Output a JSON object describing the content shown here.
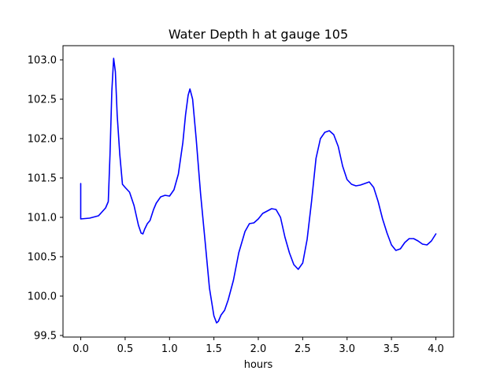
{
  "chart_data": {
    "type": "line",
    "title": "Water Depth h at gauge 105",
    "xlabel": "hours",
    "ylabel": "",
    "xlim": [
      -0.2,
      4.2
    ],
    "ylim": [
      99.48,
      103.18
    ],
    "xticks": [
      0.0,
      0.5,
      1.0,
      1.5,
      2.0,
      2.5,
      3.0,
      3.5,
      4.0
    ],
    "xtick_labels": [
      "0.0",
      "0.5",
      "1.0",
      "1.5",
      "2.0",
      "2.5",
      "3.0",
      "3.5",
      "4.0"
    ],
    "yticks": [
      99.5,
      100.0,
      100.5,
      101.0,
      101.5,
      102.0,
      102.5,
      103.0
    ],
    "ytick_labels": [
      "99.5",
      "100.0",
      "100.5",
      "101.0",
      "101.5",
      "102.0",
      "102.5",
      "103.0"
    ],
    "grid": false,
    "legend": "none",
    "series": [
      {
        "color": "#0000ff",
        "x": [
          0.0,
          0.0,
          0.1,
          0.2,
          0.28,
          0.31,
          0.33,
          0.35,
          0.37,
          0.39,
          0.41,
          0.44,
          0.47,
          0.5,
          0.55,
          0.6,
          0.65,
          0.68,
          0.7,
          0.72,
          0.75,
          0.78,
          0.82,
          0.85,
          0.9,
          0.95,
          1.0,
          1.05,
          1.1,
          1.15,
          1.18,
          1.21,
          1.23,
          1.26,
          1.3,
          1.35,
          1.4,
          1.45,
          1.5,
          1.53,
          1.55,
          1.58,
          1.62,
          1.66,
          1.72,
          1.78,
          1.85,
          1.9,
          1.95,
          2.0,
          2.05,
          2.1,
          2.15,
          2.2,
          2.25,
          2.3,
          2.35,
          2.4,
          2.45,
          2.5,
          2.55,
          2.6,
          2.65,
          2.7,
          2.75,
          2.8,
          2.85,
          2.9,
          2.95,
          3.0,
          3.05,
          3.1,
          3.15,
          3.2,
          3.25,
          3.3,
          3.35,
          3.4,
          3.45,
          3.5,
          3.55,
          3.6,
          3.65,
          3.7,
          3.75,
          3.8,
          3.85,
          3.9,
          3.95,
          4.0
        ],
        "y": [
          101.43,
          100.98,
          100.99,
          101.02,
          101.12,
          101.2,
          101.8,
          102.6,
          103.02,
          102.85,
          102.3,
          101.8,
          101.42,
          101.38,
          101.32,
          101.15,
          100.9,
          100.8,
          100.79,
          100.85,
          100.92,
          100.96,
          101.1,
          101.18,
          101.26,
          101.28,
          101.27,
          101.35,
          101.55,
          101.95,
          102.3,
          102.55,
          102.63,
          102.5,
          102.0,
          101.3,
          100.7,
          100.1,
          99.75,
          99.66,
          99.68,
          99.76,
          99.82,
          99.95,
          100.2,
          100.55,
          100.82,
          100.92,
          100.93,
          100.98,
          101.05,
          101.08,
          101.11,
          101.1,
          101.0,
          100.75,
          100.55,
          100.4,
          100.34,
          100.42,
          100.72,
          101.2,
          101.75,
          102.0,
          102.08,
          102.1,
          102.05,
          101.9,
          101.65,
          101.48,
          101.42,
          101.4,
          101.41,
          101.43,
          101.45,
          101.38,
          101.2,
          100.98,
          100.8,
          100.65,
          100.58,
          100.6,
          100.68,
          100.73,
          100.73,
          100.7,
          100.66,
          100.65,
          100.7,
          100.79
        ]
      }
    ]
  }
}
